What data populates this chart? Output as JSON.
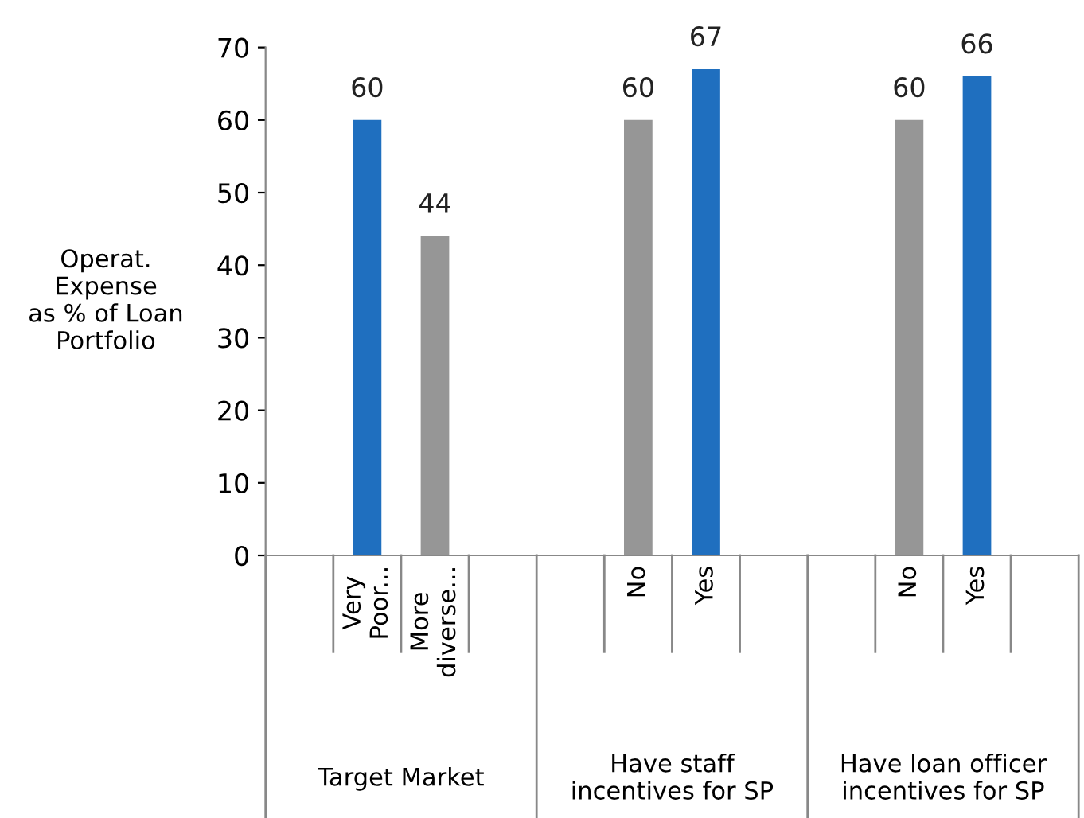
{
  "chart_data": {
    "type": "bar",
    "ylabel": "Operat.\nExpense\nas % of Loan\nPortfolio",
    "categories": [
      null,
      "Very\nPoor...",
      "More\ndiverse...",
      null,
      null,
      "No",
      "Yes",
      null,
      null,
      "No",
      "Yes",
      null
    ],
    "values": [
      null,
      60,
      44,
      null,
      null,
      60,
      67,
      null,
      null,
      60,
      66,
      null
    ],
    "colors": [
      "#1f6fbf",
      "#1f6fbf",
      "#969696",
      "#1f6fbf",
      "#1f6fbf",
      "#969696",
      "#1f6fbf",
      "#1f6fbf",
      "#1f6fbf",
      "#969696",
      "#1f6fbf",
      "#1f6fbf"
    ],
    "ylim": [
      0,
      70
    ],
    "yticks": [
      0,
      10,
      20,
      30,
      40,
      50,
      60,
      70
    ],
    "grid": false,
    "data_labels": true,
    "annotations": [
      "Target Market",
      "Have staff\nincentives for SP",
      "Have loan officer\nincentives for SP"
    ]
  }
}
